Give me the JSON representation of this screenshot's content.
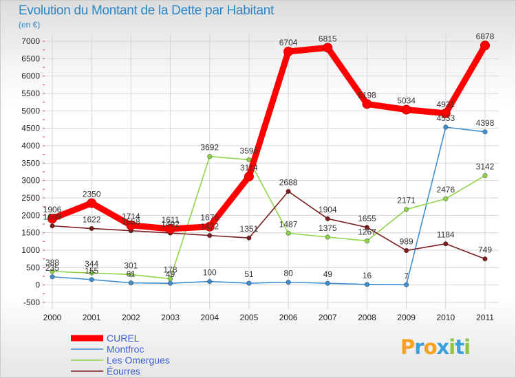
{
  "header": {
    "title": "Evolution du Montant de la Dette par Habitant",
    "subtitle": "(en €)"
  },
  "logo": {
    "letters": [
      "P",
      "r",
      "o",
      "x",
      "i",
      "t",
      "i"
    ],
    "colors": [
      "#f7a21b",
      "#3aa0dc",
      "#f7a21b",
      "#3aa0dc",
      "#8bc53f",
      "#3aa0dc",
      "#8bc53f"
    ]
  },
  "chart_data": {
    "type": "line",
    "title": "Evolution du Montant de la Dette par Habitant",
    "subtitle": "(en €)",
    "x": [
      "2000",
      "2001",
      "2002",
      "2003",
      "2004",
      "2005",
      "2006",
      "2007",
      "2008",
      "2009",
      "2010",
      "2011"
    ],
    "ylim": [
      -500,
      7000
    ],
    "yticks": [
      -500,
      0,
      500,
      1000,
      1500,
      2000,
      2500,
      3000,
      3500,
      4000,
      4500,
      5000,
      5500,
      6000,
      6500,
      7000
    ],
    "grid": true,
    "legend_position": "bottom-left",
    "series": [
      {
        "name": "CUREL",
        "color": "#ff0000",
        "values": [
          1906,
          2350,
          1714,
          1611,
          1676,
          3114,
          6704,
          6815,
          5198,
          5034,
          4931,
          6878
        ]
      },
      {
        "name": "Montfroc",
        "color": "#3f8ed0",
        "values": [
          235,
          155,
          61,
          49,
          100,
          51,
          80,
          49,
          16,
          7,
          4533,
          4398
        ]
      },
      {
        "name": "Les Omergues",
        "color": "#8fd44a",
        "values": [
          388,
          344,
          301,
          178,
          3692,
          3596,
          1487,
          1375,
          1267,
          2171,
          2476,
          3142
        ]
      },
      {
        "name": "Éourres",
        "color": "#7a1c1c",
        "values": [
          1698,
          1622,
          1558,
          1492,
          1422,
          1351,
          2688,
          1904,
          1655,
          989,
          1184,
          749
        ]
      }
    ]
  }
}
